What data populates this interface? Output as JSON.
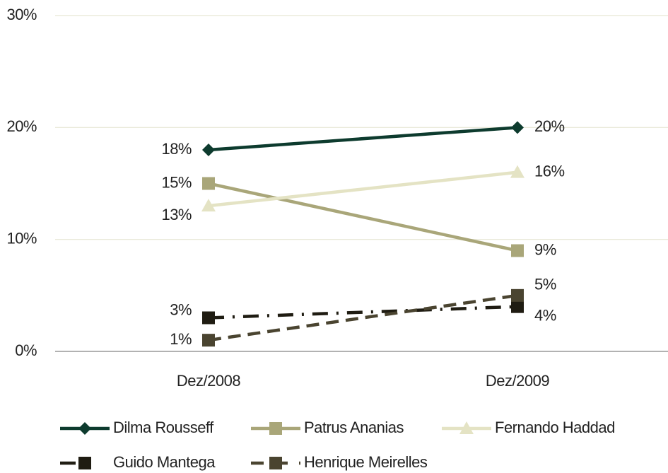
{
  "chart_data": {
    "type": "line",
    "categories": [
      "Dez/2008",
      "Dez/2009"
    ],
    "ylim": [
      0,
      30
    ],
    "yticks": [
      {
        "value": 0,
        "label": "0%"
      },
      {
        "value": 10,
        "label": "10%"
      },
      {
        "value": 20,
        "label": "20%"
      },
      {
        "value": 30,
        "label": "30%"
      }
    ],
    "grid": true,
    "legend": "bottom",
    "series": [
      {
        "name": "Dilma Rousseff",
        "color": "#0d3b2e",
        "marker": "diamond",
        "dash": "solid",
        "values": [
          18,
          20
        ],
        "value_labels": [
          "18%",
          "20%"
        ]
      },
      {
        "name": "Patrus Ananias",
        "color": "#a9a679",
        "marker": "square",
        "dash": "solid",
        "values": [
          15,
          9
        ],
        "value_labels": [
          "15%",
          "9%"
        ]
      },
      {
        "name": "Fernando Haddad",
        "color": "#e4e3c4",
        "marker": "triangle",
        "dash": "solid",
        "values": [
          13,
          16
        ],
        "value_labels": [
          "13%",
          "16%"
        ]
      },
      {
        "name": "Guido Mantega",
        "color": "#1f1c12",
        "marker": "square",
        "dash": "dash-dot",
        "values": [
          3,
          4
        ],
        "value_labels": [
          "3%",
          "4%"
        ]
      },
      {
        "name": "Henrique Meirelles",
        "color": "#4a4430",
        "marker": "square",
        "dash": "dash",
        "values": [
          1,
          5
        ],
        "value_labels": [
          "1%",
          "5%"
        ]
      }
    ]
  }
}
